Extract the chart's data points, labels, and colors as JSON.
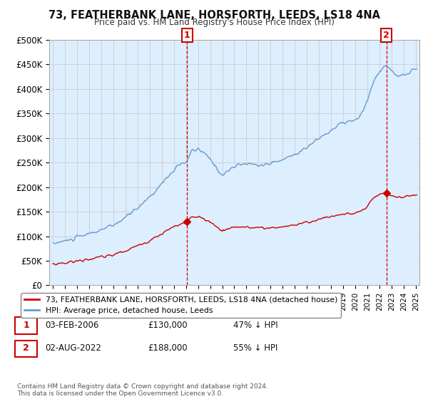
{
  "title": "73, FEATHERBANK LANE, HORSFORTH, LEEDS, LS18 4NA",
  "subtitle": "Price paid vs. HM Land Registry's House Price Index (HPI)",
  "y_ticks": [
    0,
    50000,
    100000,
    150000,
    200000,
    250000,
    300000,
    350000,
    400000,
    450000,
    500000
  ],
  "y_tick_labels": [
    "£0",
    "£50K",
    "£100K",
    "£150K",
    "£200K",
    "£250K",
    "£300K",
    "£350K",
    "£400K",
    "£450K",
    "£500K"
  ],
  "ylim": [
    0,
    500000
  ],
  "sale1_date": 2006.09,
  "sale1_price": 130000,
  "sale2_date": 2022.58,
  "sale2_price": 188000,
  "sale_color": "#cc0000",
  "hpi_color": "#6699cc",
  "hpi_fill_color": "#ddeeff",
  "legend_entries": [
    "73, FEATHERBANK LANE, HORSFORTH, LEEDS, LS18 4NA (detached house)",
    "HPI: Average price, detached house, Leeds"
  ],
  "footer_text": "Contains HM Land Registry data © Crown copyright and database right 2024.\nThis data is licensed under the Open Government Licence v3.0.",
  "table_rows": [
    [
      "1",
      "03-FEB-2006",
      "£130,000",
      "47% ↓ HPI"
    ],
    [
      "2",
      "02-AUG-2022",
      "£188,000",
      "55% ↓ HPI"
    ]
  ],
  "background_color": "#ffffff",
  "grid_color": "#cccccc"
}
